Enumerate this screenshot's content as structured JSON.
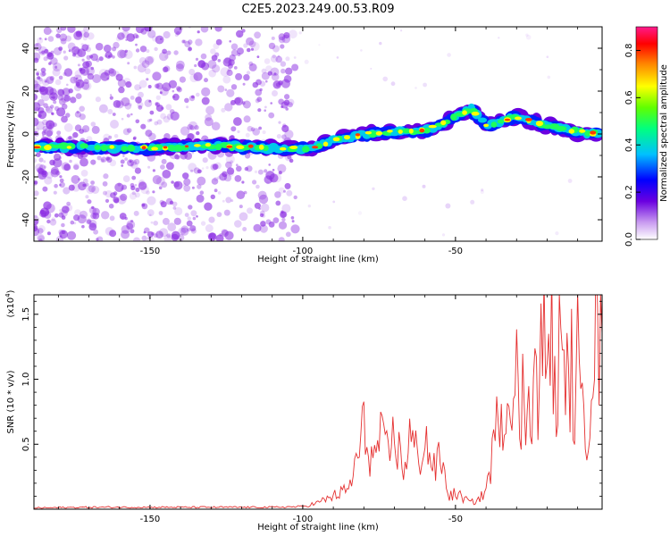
{
  "title": "C2E5.2023.249.00.53.R09",
  "colors": {
    "snr_line": "#e53030",
    "axis": "#000000",
    "noise": "#8a2be2"
  },
  "chart_data": [
    {
      "type": "heatmap",
      "xlabel": "Height of straight line (km)",
      "ylabel": "Frequency (Hz)",
      "xlim": [
        -188,
        -2
      ],
      "ylim": [
        -50,
        50
      ],
      "x_ticks": [
        -150,
        -100,
        -50
      ],
      "y_ticks": [
        -40,
        -20,
        0,
        20,
        40
      ],
      "colorbar": {
        "label": "Normalized spectral amplitude",
        "range": [
          0,
          0.9
        ],
        "ticks": [
          0.0,
          0.2,
          0.4,
          0.6,
          0.8
        ],
        "colormap": "rainbow (white → violet → blue → cyan → green → yellow → red → magenta)"
      },
      "ridge": [
        {
          "height_km": -186,
          "freq_hz": -6
        },
        {
          "height_km": -170,
          "freq_hz": -6
        },
        {
          "height_km": -150,
          "freq_hz": -6.5
        },
        {
          "height_km": -130,
          "freq_hz": -5.5
        },
        {
          "height_km": -110,
          "freq_hz": -6.5
        },
        {
          "height_km": -98,
          "freq_hz": -7
        },
        {
          "height_km": -90,
          "freq_hz": -3
        },
        {
          "height_km": -80,
          "freq_hz": 0
        },
        {
          "height_km": -70,
          "freq_hz": 1
        },
        {
          "height_km": -60,
          "freq_hz": 1.5
        },
        {
          "height_km": -52,
          "freq_hz": 6
        },
        {
          "height_km": -45,
          "freq_hz": 12
        },
        {
          "height_km": -40,
          "freq_hz": 4
        },
        {
          "height_km": -30,
          "freq_hz": 8
        },
        {
          "height_km": -20,
          "freq_hz": 4
        },
        {
          "height_km": -10,
          "freq_hz": 1
        },
        {
          "height_km": -2,
          "freq_hz": 0
        }
      ]
    },
    {
      "type": "line",
      "xlabel": "Height of straight line (km)",
      "ylabel": "SNR (10 * v/v)",
      "y_exponent": "(x10",
      "y_exponent_power": "4",
      "y_exponent_close": ")",
      "xlim": [
        -188,
        -2
      ],
      "ylim": [
        0,
        1.65
      ],
      "x_ticks": [
        -150,
        -100,
        -50
      ],
      "y_ticks": [
        0.5,
        1.0,
        1.5
      ],
      "y_tick_labels": [
        "0.5",
        "1.0",
        "1.5"
      ],
      "series": [
        {
          "x": [
            -188,
            -170,
            -150,
            -130,
            -110,
            -100,
            -95,
            -90,
            -85,
            -82,
            -80,
            -77,
            -75,
            -72,
            -70,
            -67,
            -65,
            -62,
            -60,
            -57,
            -55,
            -52,
            -50,
            -47,
            -45,
            -42,
            -40,
            -38,
            -36,
            -35,
            -34,
            -33,
            -32,
            -31,
            -30,
            -29,
            -28,
            -27,
            -26,
            -25,
            -24,
            -23,
            -22,
            -21,
            -20,
            -19,
            -18,
            -17,
            -16,
            -15,
            -14,
            -13,
            -12,
            -11,
            -10,
            -9,
            -8,
            -7,
            -6,
            -5,
            -4,
            -3,
            -2
          ],
          "values": [
            0.01,
            0.015,
            0.015,
            0.015,
            0.015,
            0.02,
            0.05,
            0.1,
            0.15,
            0.4,
            0.62,
            0.35,
            0.55,
            0.4,
            0.58,
            0.3,
            0.56,
            0.38,
            0.55,
            0.3,
            0.4,
            0.1,
            0.12,
            0.08,
            0.05,
            0.08,
            0.15,
            0.4,
            0.7,
            0.98,
            0.6,
            0.85,
            1.2,
            0.8,
            1.05,
            0.5,
            0.9,
            0.6,
            1.25,
            0.7,
            1.1,
            0.8,
            1.18,
            1.3,
            0.95,
            1.65,
            1.0,
            0.7,
            1.35,
            0.9,
            1.3,
            0.8,
            1.1,
            0.7,
            1.2,
            0.65,
            1.15,
            0.5,
            0.9,
            1.3,
            1.45,
            1.2,
            1.35
          ]
        }
      ]
    }
  ]
}
